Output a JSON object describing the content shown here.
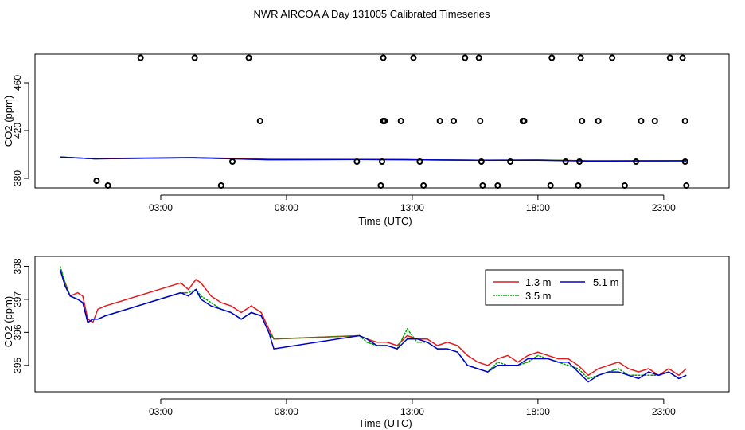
{
  "title": "NWR AIRCOA A  Day 131005  Calibrated Timeseries",
  "chart_data": [
    {
      "type": "scatter",
      "xlabel": "Time (UTC)",
      "ylabel": "CO2 (ppm)",
      "xlim": [
        -2.0,
        25.6
      ],
      "ylim": [
        372,
        484
      ],
      "xticks": [
        3,
        8,
        13,
        18,
        23
      ],
      "xtick_labels": [
        "03:00",
        "08:00",
        "13:00",
        "18:00",
        "23:00"
      ],
      "yticks": [
        380,
        420,
        460
      ],
      "yticklabels": [
        "380",
        "420",
        "460"
      ],
      "points": {
        "name": "flagged values",
        "x": [
          0.45,
          2.2,
          4.35,
          6.5,
          0.9,
          5.4,
          6.95,
          11.85,
          13.05,
          14.1,
          15.1,
          15.65,
          17.45,
          18.55,
          19.7,
          20.95,
          22.1,
          23.25,
          23.75,
          11.9,
          11.85,
          12.55,
          14.65,
          15.7,
          17.4,
          19.75,
          20.4,
          22.65,
          23.85,
          5.85,
          10.8,
          11.8,
          13.3,
          15.75,
          16.9,
          19.1,
          19.65,
          21.9,
          23.85,
          11.75,
          13.45,
          15.8,
          16.4,
          18.5,
          19.6,
          21.45,
          23.9
        ],
        "y": [
          378,
          481,
          481,
          481,
          374,
          374,
          428,
          481,
          481,
          428,
          481,
          481,
          428,
          481,
          481,
          481,
          428,
          481,
          481,
          428,
          428,
          428,
          428,
          428,
          428,
          428,
          428,
          428,
          428,
          394,
          394,
          394,
          394,
          394,
          394,
          394,
          394,
          394,
          394,
          374,
          374,
          374,
          374,
          374,
          374,
          374,
          374
        ]
      },
      "series": [
        {
          "name": "1.3 m",
          "color": "#e41a1c",
          "x": [
            -1.0,
            0.4,
            0.7,
            3.8,
            4.3,
            7.3,
            10.9,
            13.0,
            15.6,
            18.0,
            20.0,
            23.9
          ],
          "y": [
            397.9,
            396.3,
            396.7,
            397.4,
            397.5,
            396.0,
            395.9,
            395.6,
            395.1,
            395.4,
            394.7,
            394.9
          ]
        },
        {
          "name": "3.5 m",
          "color": "#00a000",
          "x": [
            -1.0,
            0.4,
            0.7,
            3.8,
            4.3,
            7.3,
            10.9,
            13.0,
            15.6,
            18.0,
            20.0,
            23.9
          ],
          "y": [
            397.9,
            396.3,
            396.4,
            397.2,
            397.2,
            395.7,
            395.9,
            395.6,
            395.1,
            395.3,
            394.6,
            394.7
          ]
        },
        {
          "name": "5.1 m",
          "color": "#0000cc",
          "x": [
            -1.0,
            0.4,
            0.7,
            3.8,
            4.3,
            7.3,
            10.9,
            13.0,
            15.6,
            18.0,
            20.0,
            23.9
          ],
          "y": [
            397.9,
            396.3,
            396.4,
            397.2,
            397.2,
            395.6,
            395.9,
            395.6,
            395.1,
            395.2,
            394.5,
            394.7
          ]
        }
      ]
    },
    {
      "type": "line",
      "xlabel": "Time (UTC)",
      "ylabel": "CO2 (ppm)",
      "xlim": [
        -2.0,
        25.6
      ],
      "ylim": [
        394.2,
        398.3
      ],
      "xticks": [
        3,
        8,
        13,
        18,
        23
      ],
      "xtick_labels": [
        "03:00",
        "08:00",
        "13:00",
        "18:00",
        "23:00"
      ],
      "yticks": [
        395,
        396,
        397,
        398
      ],
      "yticklabels": [
        "395",
        "396",
        "397",
        "398"
      ],
      "legend": {
        "position": "top-right",
        "labels": [
          "1.3 m",
          "3.5 m",
          "5.1 m"
        ]
      },
      "series": [
        {
          "name": "1.3 m",
          "color": "#e41a1c",
          "x": [
            -1.0,
            -0.8,
            -0.6,
            -0.3,
            -0.1,
            0.1,
            0.3,
            0.5,
            0.8,
            3.8,
            4.1,
            4.4,
            4.6,
            5.0,
            5.4,
            5.8,
            6.2,
            6.6,
            7.0,
            7.3,
            7.5,
            10.9,
            11.2,
            11.6,
            12.0,
            12.4,
            12.8,
            13.2,
            13.6,
            14.0,
            14.4,
            14.8,
            15.2,
            15.6,
            16.0,
            16.4,
            16.8,
            17.2,
            17.6,
            18.0,
            18.4,
            18.8,
            19.2,
            19.6,
            20.0,
            20.4,
            20.8,
            21.2,
            21.6,
            22.0,
            22.4,
            22.8,
            23.2,
            23.6,
            23.9
          ],
          "y": [
            397.9,
            397.5,
            397.1,
            397.2,
            397.1,
            396.4,
            396.3,
            396.7,
            396.8,
            397.5,
            397.3,
            397.6,
            397.5,
            397.1,
            396.9,
            396.8,
            396.6,
            396.8,
            396.6,
            396.1,
            395.8,
            395.9,
            395.8,
            395.7,
            395.7,
            395.6,
            395.9,
            395.8,
            395.8,
            395.6,
            395.7,
            395.6,
            395.3,
            395.1,
            395.0,
            395.2,
            395.3,
            395.1,
            395.3,
            395.4,
            395.3,
            395.2,
            395.2,
            395.0,
            394.7,
            394.9,
            395.0,
            395.1,
            394.9,
            394.8,
            394.9,
            394.7,
            394.9,
            394.7,
            394.9
          ]
        },
        {
          "name": "3.5 m",
          "color": "#00a000",
          "x": [
            -1.0,
            -0.8,
            -0.6,
            -0.3,
            -0.1,
            0.1,
            0.3,
            0.5,
            0.8,
            3.8,
            4.1,
            4.4,
            4.6,
            5.0,
            5.4,
            5.8,
            6.2,
            6.6,
            7.0,
            7.3,
            7.5,
            10.9,
            11.2,
            11.6,
            12.0,
            12.4,
            12.8,
            13.2,
            13.6,
            14.0,
            14.4,
            14.8,
            15.2,
            15.6,
            16.0,
            16.4,
            16.8,
            17.2,
            17.6,
            18.0,
            18.4,
            18.8,
            19.2,
            19.6,
            20.0,
            20.4,
            20.8,
            21.2,
            21.6,
            22.0,
            22.4,
            22.8,
            23.2,
            23.6,
            23.9
          ],
          "y": [
            398.0,
            397.5,
            397.1,
            397.0,
            396.9,
            396.3,
            396.4,
            396.4,
            396.5,
            397.2,
            397.2,
            397.3,
            397.1,
            396.9,
            396.7,
            396.6,
            396.4,
            396.6,
            396.5,
            396.0,
            395.8,
            395.9,
            395.7,
            395.6,
            395.6,
            395.5,
            396.1,
            395.7,
            395.7,
            395.5,
            395.5,
            395.4,
            395.0,
            394.9,
            394.8,
            395.1,
            395.0,
            395.0,
            395.1,
            395.3,
            395.2,
            395.1,
            395.0,
            394.9,
            394.6,
            394.7,
            394.8,
            394.9,
            394.7,
            394.7,
            394.7,
            394.7,
            394.8,
            394.6,
            394.7
          ]
        },
        {
          "name": "5.1 m",
          "color": "#0000cc",
          "x": [
            -1.0,
            -0.8,
            -0.6,
            -0.3,
            -0.1,
            0.1,
            0.3,
            0.5,
            0.8,
            3.8,
            4.1,
            4.4,
            4.6,
            5.0,
            5.4,
            5.8,
            6.2,
            6.6,
            7.0,
            7.3,
            7.5,
            10.9,
            11.2,
            11.6,
            12.0,
            12.4,
            12.8,
            13.2,
            13.6,
            14.0,
            14.4,
            14.8,
            15.2,
            15.6,
            16.0,
            16.4,
            16.8,
            17.2,
            17.6,
            18.0,
            18.4,
            18.8,
            19.2,
            19.6,
            20.0,
            20.4,
            20.8,
            21.2,
            21.6,
            22.0,
            22.4,
            22.8,
            23.2,
            23.6,
            23.9
          ],
          "y": [
            397.9,
            397.4,
            397.1,
            397.0,
            396.9,
            396.3,
            396.4,
            396.4,
            396.5,
            397.2,
            397.1,
            397.3,
            397.0,
            396.8,
            396.7,
            396.6,
            396.4,
            396.6,
            396.5,
            396.0,
            395.5,
            395.9,
            395.8,
            395.6,
            395.6,
            395.5,
            395.8,
            395.8,
            395.7,
            395.5,
            395.5,
            395.4,
            395.0,
            394.9,
            394.8,
            395.0,
            395.0,
            395.0,
            395.2,
            395.2,
            395.2,
            395.1,
            395.1,
            394.8,
            394.5,
            394.7,
            394.8,
            394.8,
            394.7,
            394.6,
            394.8,
            394.7,
            394.8,
            394.6,
            394.7
          ]
        }
      ]
    }
  ]
}
